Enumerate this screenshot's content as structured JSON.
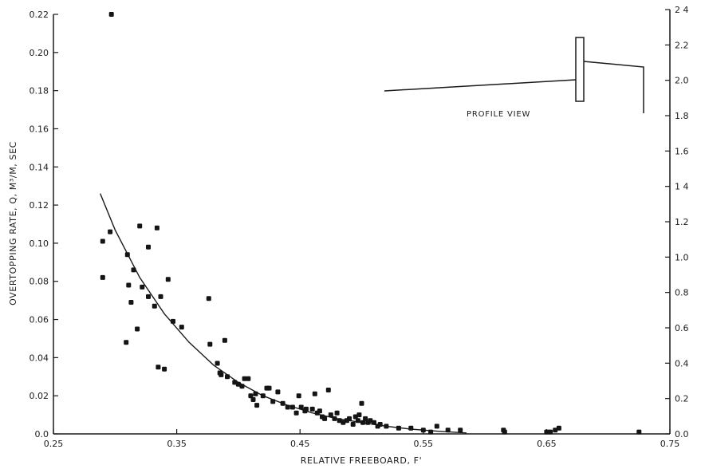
{
  "chart_data": {
    "type": "scatter",
    "xlabel": "RELATIVE FREEBOARD, F'",
    "ylabel": "OVERTOPPING RATE, Q, M³/M, SEC",
    "xlim": [
      0.25,
      0.75
    ],
    "ylim": [
      0.0,
      0.22
    ],
    "y2lim": [
      0.0,
      2.4
    ],
    "x_ticks": [
      "0.25",
      "0.35",
      "0.45",
      "0.55",
      "0.65",
      "0.75"
    ],
    "x_tick_values": [
      0.25,
      0.35,
      0.45,
      0.55,
      0.65,
      0.75
    ],
    "y_ticks": [
      "0.0",
      "0.02",
      "0.04",
      "0.06",
      "0.08",
      "0.10",
      "0.12",
      "0.14",
      "0.16",
      "0.18",
      "0.20",
      "0.22"
    ],
    "y_tick_values": [
      0.0,
      0.02,
      0.04,
      0.06,
      0.08,
      0.1,
      0.12,
      0.14,
      0.16,
      0.18,
      0.2,
      0.22
    ],
    "y2_ticks": [
      "0.0",
      "0.2",
      "0.4",
      "0.6",
      "0.8",
      "1.0",
      "1.2",
      "1 4",
      "1.6",
      "1.8",
      "2.0",
      "2.2",
      "2 4"
    ],
    "y2_tick_values": [
      0.0,
      0.2,
      0.4,
      0.6,
      0.8,
      1.0,
      1.2,
      1.4,
      1.6,
      1.8,
      2.0,
      2.2,
      2.4
    ],
    "grid": false,
    "annotation": "PROFILE VIEW",
    "points": [
      [
        0.297,
        0.22
      ],
      [
        0.29,
        0.101
      ],
      [
        0.296,
        0.106
      ],
      [
        0.29,
        0.082
      ],
      [
        0.31,
        0.094
      ],
      [
        0.309,
        0.048
      ],
      [
        0.311,
        0.078
      ],
      [
        0.313,
        0.069
      ],
      [
        0.315,
        0.086
      ],
      [
        0.318,
        0.055
      ],
      [
        0.32,
        0.109
      ],
      [
        0.322,
        0.077
      ],
      [
        0.327,
        0.098
      ],
      [
        0.327,
        0.072
      ],
      [
        0.332,
        0.067
      ],
      [
        0.334,
        0.108
      ],
      [
        0.337,
        0.072
      ],
      [
        0.335,
        0.035
      ],
      [
        0.34,
        0.034
      ],
      [
        0.343,
        0.081
      ],
      [
        0.347,
        0.059
      ],
      [
        0.354,
        0.056
      ],
      [
        0.376,
        0.071
      ],
      [
        0.377,
        0.047
      ],
      [
        0.383,
        0.037
      ],
      [
        0.385,
        0.032
      ],
      [
        0.386,
        0.031
      ],
      [
        0.389,
        0.049
      ],
      [
        0.391,
        0.03
      ],
      [
        0.397,
        0.027
      ],
      [
        0.4,
        0.026
      ],
      [
        0.403,
        0.025
      ],
      [
        0.405,
        0.029
      ],
      [
        0.408,
        0.029
      ],
      [
        0.41,
        0.02
      ],
      [
        0.412,
        0.018
      ],
      [
        0.414,
        0.021
      ],
      [
        0.415,
        0.015
      ],
      [
        0.42,
        0.02
      ],
      [
        0.423,
        0.024
      ],
      [
        0.425,
        0.024
      ],
      [
        0.428,
        0.017
      ],
      [
        0.432,
        0.022
      ],
      [
        0.436,
        0.016
      ],
      [
        0.44,
        0.014
      ],
      [
        0.444,
        0.014
      ],
      [
        0.447,
        0.011
      ],
      [
        0.449,
        0.02
      ],
      [
        0.451,
        0.014
      ],
      [
        0.454,
        0.012
      ],
      [
        0.455,
        0.013
      ],
      [
        0.46,
        0.013
      ],
      [
        0.462,
        0.021
      ],
      [
        0.464,
        0.011
      ],
      [
        0.466,
        0.012
      ],
      [
        0.468,
        0.009
      ],
      [
        0.47,
        0.008
      ],
      [
        0.473,
        0.023
      ],
      [
        0.475,
        0.01
      ],
      [
        0.478,
        0.008
      ],
      [
        0.48,
        0.011
      ],
      [
        0.482,
        0.007
      ],
      [
        0.485,
        0.006
      ],
      [
        0.488,
        0.007
      ],
      [
        0.49,
        0.008
      ],
      [
        0.493,
        0.005
      ],
      [
        0.495,
        0.009
      ],
      [
        0.497,
        0.007
      ],
      [
        0.498,
        0.01
      ],
      [
        0.5,
        0.016
      ],
      [
        0.501,
        0.006
      ],
      [
        0.503,
        0.008
      ],
      [
        0.505,
        0.006
      ],
      [
        0.507,
        0.007
      ],
      [
        0.51,
        0.006
      ],
      [
        0.513,
        0.004
      ],
      [
        0.515,
        0.005
      ],
      [
        0.52,
        0.004
      ],
      [
        0.53,
        0.003
      ],
      [
        0.54,
        0.003
      ],
      [
        0.55,
        0.002
      ],
      [
        0.556,
        0.001
      ],
      [
        0.561,
        0.004
      ],
      [
        0.57,
        0.002
      ],
      [
        0.58,
        0.002
      ],
      [
        0.615,
        0.002
      ],
      [
        0.616,
        0.001
      ],
      [
        0.65,
        0.001
      ],
      [
        0.653,
        0.001
      ],
      [
        0.657,
        0.002
      ],
      [
        0.66,
        0.003
      ],
      [
        0.725,
        0.001
      ]
    ],
    "fit_curve": [
      [
        0.288,
        0.126
      ],
      [
        0.3,
        0.107
      ],
      [
        0.32,
        0.082
      ],
      [
        0.34,
        0.063
      ],
      [
        0.36,
        0.048
      ],
      [
        0.38,
        0.036
      ],
      [
        0.4,
        0.027
      ],
      [
        0.42,
        0.02
      ],
      [
        0.44,
        0.015
      ],
      [
        0.46,
        0.011
      ],
      [
        0.48,
        0.008
      ],
      [
        0.5,
        0.006
      ],
      [
        0.52,
        0.004
      ],
      [
        0.54,
        0.0025
      ],
      [
        0.56,
        0.0015
      ],
      [
        0.585,
        0.0005
      ]
    ]
  }
}
